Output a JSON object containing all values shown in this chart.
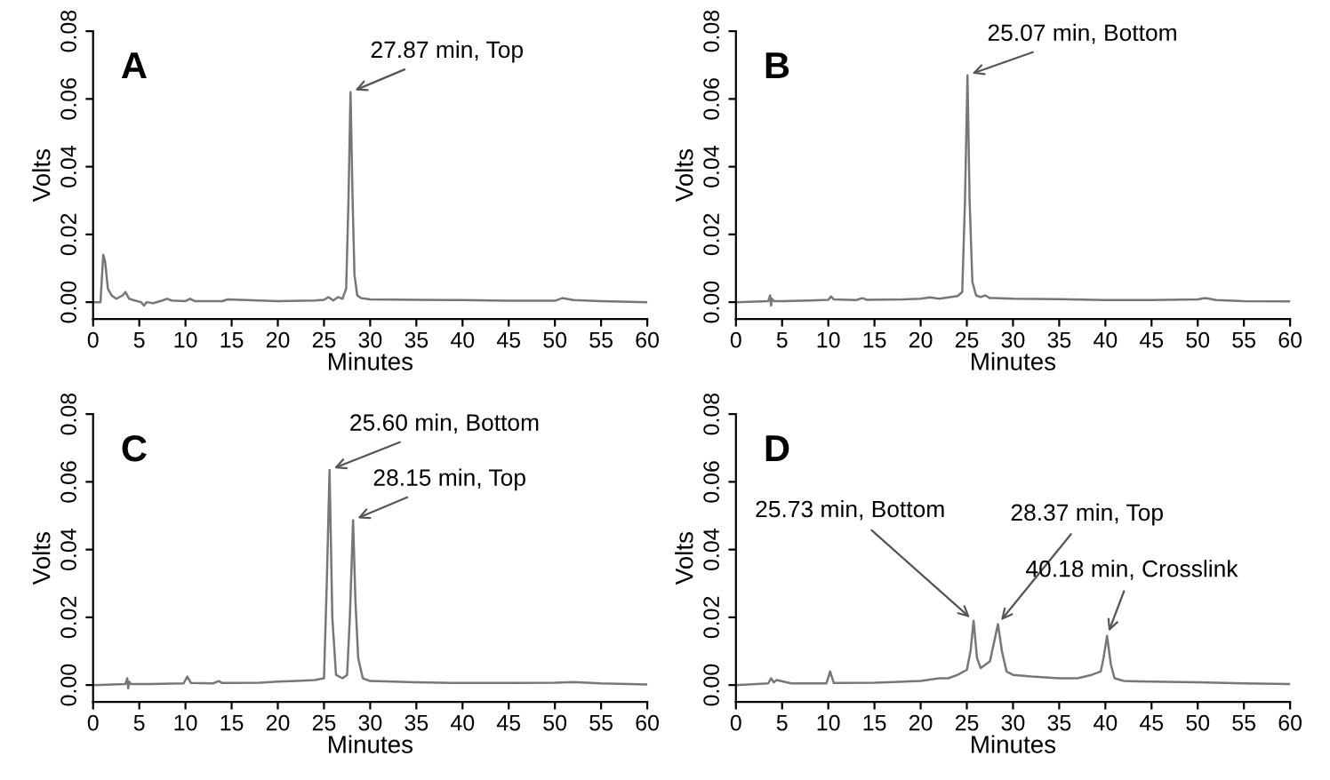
{
  "chart_data": [
    {
      "type": "line",
      "title": "A",
      "xlabel": "Minutes",
      "ylabel": "Volts",
      "xlim": [
        0,
        60
      ],
      "ylim": [
        -0.005,
        0.08
      ],
      "xticks": [
        0,
        5,
        10,
        15,
        20,
        25,
        30,
        35,
        40,
        45,
        50,
        55,
        60
      ],
      "yticks": [
        {
          "value": 0,
          "label": "0.00"
        },
        {
          "value": 0.02,
          "label": "0.02"
        },
        {
          "value": 0.04,
          "label": "0.04"
        },
        {
          "value": 0.06,
          "label": "0.06"
        },
        {
          "value": 0.08,
          "label": "0.08"
        }
      ],
      "grid": false,
      "legend": false,
      "series": [
        {
          "color": "#777777",
          "x": [
            0,
            0.8,
            1.1,
            1.3,
            1.6,
            2,
            2.5,
            3.2,
            3.5,
            3.9,
            4.5,
            5.2,
            5.5,
            5.8,
            6.5,
            7.5,
            8,
            8.5,
            10,
            10.5,
            11,
            14,
            14.5,
            20,
            24,
            25,
            25.5,
            26,
            26.5,
            27,
            27.4,
            27.65,
            27.87,
            28.1,
            28.3,
            28.6,
            29,
            30,
            35,
            40,
            45,
            50,
            50.8,
            52,
            55,
            60
          ],
          "values": [
            0,
            0,
            0.014,
            0.012,
            0.004,
            0.002,
            0.001,
            0.002,
            0.003,
            0.001,
            0.0005,
            0,
            -0.001,
            0,
            -0.0003,
            0.0005,
            0.001,
            0.0005,
            0.0003,
            0.001,
            0.0003,
            0.0003,
            0.0008,
            0.0003,
            0.0005,
            0.0007,
            0.0015,
            0.0005,
            0.0015,
            0.001,
            0.004,
            0.03,
            0.062,
            0.03,
            0.008,
            0.002,
            0.0012,
            0.0008,
            0.0007,
            0.0006,
            0.0004,
            0.0004,
            0.0012,
            0.0006,
            0.0003,
            0
          ]
        }
      ],
      "annotations": [
        {
          "text": "27.87 min, Top",
          "x": 27.87,
          "y": 0.062
        }
      ]
    },
    {
      "type": "line",
      "title": "B",
      "xlabel": "Minutes",
      "ylabel": "Volts",
      "xlim": [
        0,
        60
      ],
      "ylim": [
        -0.005,
        0.08
      ],
      "xticks": [
        0,
        5,
        10,
        15,
        20,
        25,
        30,
        35,
        40,
        45,
        50,
        55,
        60
      ],
      "yticks": [
        {
          "value": 0,
          "label": "0.00"
        },
        {
          "value": 0.02,
          "label": "0.02"
        },
        {
          "value": 0.04,
          "label": "0.04"
        },
        {
          "value": 0.06,
          "label": "0.06"
        },
        {
          "value": 0.08,
          "label": "0.08"
        }
      ],
      "grid": false,
      "legend": false,
      "series": [
        {
          "color": "#777777",
          "x": [
            0,
            3.5,
            3.7,
            3.8,
            3.9,
            4.1,
            5,
            8,
            10,
            10.3,
            10.6,
            13,
            13.7,
            14.2,
            18,
            20,
            21,
            22,
            24,
            24.5,
            24.8,
            25.07,
            25.3,
            25.6,
            26,
            26.5,
            27,
            27.5,
            28,
            30,
            35,
            40,
            45,
            50,
            50.8,
            52,
            55,
            60
          ],
          "values": [
            0,
            0.0003,
            0.002,
            -0.001,
            0.001,
            0.0003,
            0.0003,
            0.0005,
            0.0007,
            0.0017,
            0.0008,
            0.0006,
            0.0012,
            0.0007,
            0.0008,
            0.001,
            0.0014,
            0.001,
            0.0018,
            0.003,
            0.03,
            0.067,
            0.03,
            0.006,
            0.002,
            0.0015,
            0.002,
            0.0012,
            0.0012,
            0.001,
            0.0009,
            0.0006,
            0.0006,
            0.0008,
            0.0012,
            0.0006,
            0.0003,
            0.0002
          ]
        }
      ],
      "annotations": [
        {
          "text": "25.07 min, Bottom",
          "x": 25.07,
          "y": 0.067
        }
      ]
    },
    {
      "type": "line",
      "title": "C",
      "xlabel": "Minutes",
      "ylabel": "Volts",
      "xlim": [
        0,
        60
      ],
      "ylim": [
        -0.005,
        0.08
      ],
      "xticks": [
        0,
        5,
        10,
        15,
        20,
        25,
        30,
        35,
        40,
        45,
        50,
        55,
        60
      ],
      "yticks": [
        {
          "value": 0,
          "label": "0.00"
        },
        {
          "value": 0.02,
          "label": "0.02"
        },
        {
          "value": 0.04,
          "label": "0.04"
        },
        {
          "value": 0.06,
          "label": "0.06"
        },
        {
          "value": 0.08,
          "label": "0.08"
        }
      ],
      "grid": false,
      "legend": false,
      "series": [
        {
          "color": "#777777",
          "x": [
            0,
            3.5,
            3.7,
            3.8,
            3.9,
            4.1,
            6,
            9.8,
            10.2,
            10.6,
            13,
            13.6,
            14,
            18,
            20,
            22,
            24,
            25,
            25.3,
            25.6,
            25.9,
            26.3,
            27,
            27.5,
            27.8,
            28.15,
            28.4,
            28.7,
            29.2,
            30,
            35,
            40,
            45,
            50,
            52,
            55,
            60
          ],
          "values": [
            0,
            0.0003,
            0.002,
            -0.001,
            0.001,
            0.0003,
            0.0003,
            0.0005,
            0.0025,
            0.0006,
            0.0005,
            0.0012,
            0.0006,
            0.0007,
            0.001,
            0.0012,
            0.0015,
            0.002,
            0.03,
            0.0635,
            0.02,
            0.003,
            0.002,
            0.003,
            0.02,
            0.0487,
            0.025,
            0.008,
            0.002,
            0.0012,
            0.0008,
            0.0006,
            0.0006,
            0.0007,
            0.0009,
            0.0005,
            0.0002
          ]
        }
      ],
      "annotations": [
        {
          "text": "25.60 min, Bottom",
          "x": 25.6,
          "y": 0.0635
        },
        {
          "text": "28.15 min, Top",
          "x": 28.15,
          "y": 0.0487
        }
      ]
    },
    {
      "type": "line",
      "title": "D",
      "xlabel": "Minutes",
      "ylabel": "Volts",
      "xlim": [
        0,
        60
      ],
      "ylim": [
        -0.005,
        0.08
      ],
      "xticks": [
        0,
        5,
        10,
        15,
        20,
        25,
        30,
        35,
        40,
        45,
        50,
        55,
        60
      ],
      "yticks": [
        {
          "value": 0,
          "label": "0.00"
        },
        {
          "value": 0.02,
          "label": "0.02"
        },
        {
          "value": 0.04,
          "label": "0.04"
        },
        {
          "value": 0.06,
          "label": "0.06"
        },
        {
          "value": 0.08,
          "label": "0.08"
        }
      ],
      "grid": false,
      "legend": false,
      "series": [
        {
          "color": "#777777",
          "x": [
            0,
            3.5,
            3.8,
            4.1,
            4.4,
            6,
            9.8,
            10.2,
            10.6,
            15,
            20,
            22,
            23,
            24,
            25,
            25.4,
            25.73,
            26.1,
            26.5,
            27,
            27.5,
            27.9,
            28.37,
            28.8,
            29.3,
            30,
            32,
            35,
            37,
            38.5,
            39.5,
            39.8,
            40.18,
            40.6,
            41,
            42,
            45,
            50,
            55,
            60
          ],
          "values": [
            0,
            0.0005,
            0.002,
            0.0008,
            0.0015,
            0.0005,
            0.0005,
            0.004,
            0.0006,
            0.0007,
            0.0012,
            0.002,
            0.002,
            0.003,
            0.0045,
            0.01,
            0.019,
            0.008,
            0.005,
            0.006,
            0.007,
            0.012,
            0.018,
            0.01,
            0.004,
            0.003,
            0.0025,
            0.002,
            0.002,
            0.003,
            0.004,
            0.008,
            0.0145,
            0.006,
            0.002,
            0.0012,
            0.001,
            0.0008,
            0.0005,
            0.0003
          ]
        }
      ],
      "annotations": [
        {
          "text": "25.73 min, Bottom",
          "x": 25.73,
          "y": 0.019
        },
        {
          "text": "28.37 min, Top",
          "x": 28.37,
          "y": 0.018
        },
        {
          "text": "40.18 min, Crosslink",
          "x": 40.18,
          "y": 0.0145
        }
      ]
    }
  ]
}
